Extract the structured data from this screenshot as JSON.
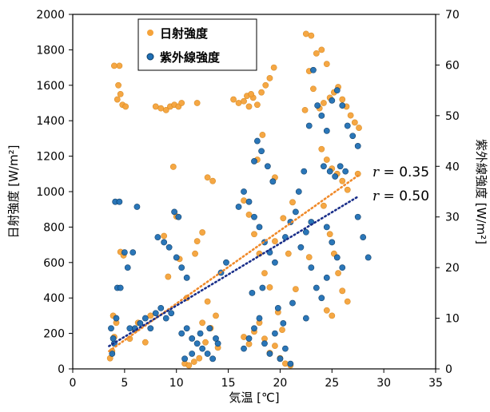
{
  "chart_data": {
    "type": "scatter",
    "xlabel": "気温 [℃]",
    "ylabel_left": "日射強度 [W/m²]",
    "ylabel_right": "紫外線強度 [W/m²]",
    "xlim": [
      0,
      35
    ],
    "ylim_left": [
      0,
      2000
    ],
    "ylim_right": [
      0,
      70
    ],
    "x_ticks": [
      "0",
      "5",
      "10",
      "15",
      "20",
      "25",
      "30",
      "35"
    ],
    "y_left_ticks": [
      "0",
      "200",
      "400",
      "600",
      "800",
      "1000",
      "1200",
      "1400",
      "1600",
      "1800",
      "2000"
    ],
    "y_right_ticks": [
      "0",
      "10",
      "20",
      "30",
      "40",
      "50",
      "60",
      "70"
    ],
    "legend_position": "top-left",
    "grid": false,
    "series": [
      {
        "name": "日射強度",
        "axis": "left",
        "color": "#F5A33A",
        "trend": {
          "x": [
            3.5,
            27.5
          ],
          "y": [
            100,
            1090
          ],
          "label_r": "r",
          "label_value": " = 0.35"
        },
        "points": [
          [
            3.8,
            100
          ],
          [
            4.0,
            180
          ],
          [
            3.6,
            60
          ],
          [
            4.2,
            260
          ],
          [
            3.9,
            300
          ],
          [
            4.5,
            1710
          ],
          [
            4.0,
            1710
          ],
          [
            4.4,
            1600
          ],
          [
            4.6,
            1550
          ],
          [
            4.3,
            1520
          ],
          [
            4.8,
            1490
          ],
          [
            5.1,
            1480
          ],
          [
            4.6,
            660
          ],
          [
            4.9,
            640
          ],
          [
            5.5,
            170
          ],
          [
            6.0,
            220
          ],
          [
            6.3,
            260
          ],
          [
            7.0,
            150
          ],
          [
            7.5,
            300
          ],
          [
            8.0,
            1480
          ],
          [
            8.5,
            1470
          ],
          [
            9.0,
            1460
          ],
          [
            9.4,
            1480
          ],
          [
            9.8,
            1490
          ],
          [
            10.2,
            1480
          ],
          [
            10.5,
            1500
          ],
          [
            12.0,
            1500
          ],
          [
            8.8,
            750
          ],
          [
            9.2,
            520
          ],
          [
            10.0,
            860
          ],
          [
            10.3,
            620
          ],
          [
            9.7,
            1140
          ],
          [
            11.0,
            400
          ],
          [
            12.5,
            770
          ],
          [
            12.0,
            720
          ],
          [
            11.8,
            650
          ],
          [
            13.0,
            1080
          ],
          [
            13.5,
            1060
          ],
          [
            10.8,
            30
          ],
          [
            11.2,
            20
          ],
          [
            11.7,
            40
          ],
          [
            12.2,
            60
          ],
          [
            12.8,
            150
          ],
          [
            13.3,
            230
          ],
          [
            13.8,
            300
          ],
          [
            14.0,
            120
          ],
          [
            13.0,
            380
          ],
          [
            12.5,
            260
          ],
          [
            15.5,
            1520
          ],
          [
            16.0,
            1500
          ],
          [
            16.5,
            1510
          ],
          [
            17.0,
            1480
          ],
          [
            17.4,
            1530
          ],
          [
            17.8,
            1490
          ],
          [
            18.2,
            1560
          ],
          [
            18.6,
            1600
          ],
          [
            19.0,
            1640
          ],
          [
            19.4,
            1700
          ],
          [
            16.8,
            1540
          ],
          [
            17.2,
            1550
          ],
          [
            16.5,
            950
          ],
          [
            17.0,
            870
          ],
          [
            17.5,
            760
          ],
          [
            18.0,
            650
          ],
          [
            18.5,
            540
          ],
          [
            19.0,
            460
          ],
          [
            19.5,
            1080
          ],
          [
            17.8,
            1180
          ],
          [
            18.3,
            1320
          ],
          [
            16.5,
            180
          ],
          [
            17.0,
            140
          ],
          [
            17.5,
            210
          ],
          [
            18.0,
            260
          ],
          [
            18.5,
            170
          ],
          [
            19.0,
            90
          ],
          [
            19.5,
            130
          ],
          [
            20.0,
            60
          ],
          [
            20.5,
            30
          ],
          [
            21.0,
            20
          ],
          [
            20.2,
            220
          ],
          [
            19.8,
            320
          ],
          [
            21.5,
            450
          ],
          [
            20.8,
            650
          ],
          [
            19.5,
            720
          ],
          [
            20.3,
            850
          ],
          [
            21.2,
            940
          ],
          [
            22.5,
            1890
          ],
          [
            23.0,
            1880
          ],
          [
            23.5,
            1780
          ],
          [
            24.0,
            1800
          ],
          [
            24.5,
            1720
          ],
          [
            22.8,
            1680
          ],
          [
            23.2,
            1580
          ],
          [
            23.8,
            1470
          ],
          [
            24.2,
            1500
          ],
          [
            24.8,
            1530
          ],
          [
            25.2,
            1560
          ],
          [
            25.6,
            1590
          ],
          [
            26.0,
            1520
          ],
          [
            26.4,
            1480
          ],
          [
            26.8,
            1430
          ],
          [
            27.2,
            1390
          ],
          [
            27.6,
            1360
          ],
          [
            22.4,
            1460
          ],
          [
            24.0,
            1240
          ],
          [
            24.5,
            1180
          ],
          [
            25.0,
            1130
          ],
          [
            25.5,
            1100
          ],
          [
            26.0,
            1060
          ],
          [
            26.5,
            1010
          ],
          [
            24.2,
            920
          ],
          [
            24.8,
            760
          ],
          [
            25.2,
            650
          ],
          [
            25.6,
            540
          ],
          [
            26.0,
            440
          ],
          [
            24.5,
            330
          ],
          [
            25.0,
            300
          ],
          [
            26.5,
            380
          ],
          [
            27.5,
            1100
          ],
          [
            22.8,
            630
          ]
        ]
      },
      {
        "name": "紫外線強度",
        "axis": "right",
        "color": "#1F6FB5",
        "trend": {
          "x": [
            3.5,
            27.5
          ],
          "y": [
            4.5,
            34.0
          ],
          "label_r": "r",
          "label_value": " = 0.50"
        },
        "points": [
          [
            3.8,
            3
          ],
          [
            4.0,
            5
          ],
          [
            3.7,
            8
          ],
          [
            4.2,
            10
          ],
          [
            3.9,
            6
          ],
          [
            4.3,
            16
          ],
          [
            4.1,
            33
          ],
          [
            4.5,
            33
          ],
          [
            5.0,
            23
          ],
          [
            5.3,
            20
          ],
          [
            5.8,
            23
          ],
          [
            6.2,
            32
          ],
          [
            4.6,
            16
          ],
          [
            5.5,
            8
          ],
          [
            6.0,
            8
          ],
          [
            6.5,
            9
          ],
          [
            7.0,
            10
          ],
          [
            7.5,
            8
          ],
          [
            8.0,
            11
          ],
          [
            8.5,
            12
          ],
          [
            9.0,
            10
          ],
          [
            9.5,
            11
          ],
          [
            8.2,
            26
          ],
          [
            8.8,
            25
          ],
          [
            9.3,
            24
          ],
          [
            10.0,
            22
          ],
          [
            10.5,
            20
          ],
          [
            11.0,
            18
          ],
          [
            9.8,
            31
          ],
          [
            10.2,
            30
          ],
          [
            10.5,
            7
          ],
          [
            11.0,
            8
          ],
          [
            11.5,
            6
          ],
          [
            12.0,
            5
          ],
          [
            12.5,
            4
          ],
          [
            13.0,
            3
          ],
          [
            13.5,
            2
          ],
          [
            14.0,
            5
          ],
          [
            10.8,
            2
          ],
          [
            11.5,
            3
          ],
          [
            12.3,
            7
          ],
          [
            13.2,
            8
          ],
          [
            13.8,
            6
          ],
          [
            14.3,
            19
          ],
          [
            14.8,
            21
          ],
          [
            16.0,
            32
          ],
          [
            16.5,
            35
          ],
          [
            17.0,
            33
          ],
          [
            17.5,
            30
          ],
          [
            18.0,
            28
          ],
          [
            18.5,
            25
          ],
          [
            19.0,
            23
          ],
          [
            19.5,
            21
          ],
          [
            17.8,
            45
          ],
          [
            18.2,
            43
          ],
          [
            18.8,
            40
          ],
          [
            19.3,
            37
          ],
          [
            17.5,
            41
          ],
          [
            16.5,
            4
          ],
          [
            17.0,
            6
          ],
          [
            17.5,
            8
          ],
          [
            18.0,
            10
          ],
          [
            18.5,
            5
          ],
          [
            19.0,
            3
          ],
          [
            19.5,
            7
          ],
          [
            20.0,
            2
          ],
          [
            20.5,
            4
          ],
          [
            21.0,
            1
          ],
          [
            20.3,
            9
          ],
          [
            19.8,
            12
          ],
          [
            17.3,
            15
          ],
          [
            18.3,
            16
          ],
          [
            21.2,
            13
          ],
          [
            20.5,
            26
          ],
          [
            21.0,
            29
          ],
          [
            21.5,
            31
          ],
          [
            22.0,
            24
          ],
          [
            22.5,
            27
          ],
          [
            23.0,
            29
          ],
          [
            21.8,
            35
          ],
          [
            22.3,
            39
          ],
          [
            22.8,
            48
          ],
          [
            23.2,
            59
          ],
          [
            23.6,
            52
          ],
          [
            24.0,
            50
          ],
          [
            24.5,
            47
          ],
          [
            25.0,
            53
          ],
          [
            25.5,
            55
          ],
          [
            26.0,
            52
          ],
          [
            26.5,
            48
          ],
          [
            27.0,
            46
          ],
          [
            27.5,
            44
          ],
          [
            24.2,
            40
          ],
          [
            24.8,
            39
          ],
          [
            25.3,
            38
          ],
          [
            25.8,
            40
          ],
          [
            26.3,
            39
          ],
          [
            24.5,
            28
          ],
          [
            25.0,
            25
          ],
          [
            25.5,
            22
          ],
          [
            26.0,
            20
          ],
          [
            23.5,
            16
          ],
          [
            24.0,
            14
          ],
          [
            24.5,
            18
          ],
          [
            27.5,
            30
          ],
          [
            28.0,
            26
          ],
          [
            28.5,
            22
          ],
          [
            22.5,
            10
          ],
          [
            23.0,
            20
          ]
        ]
      }
    ]
  }
}
